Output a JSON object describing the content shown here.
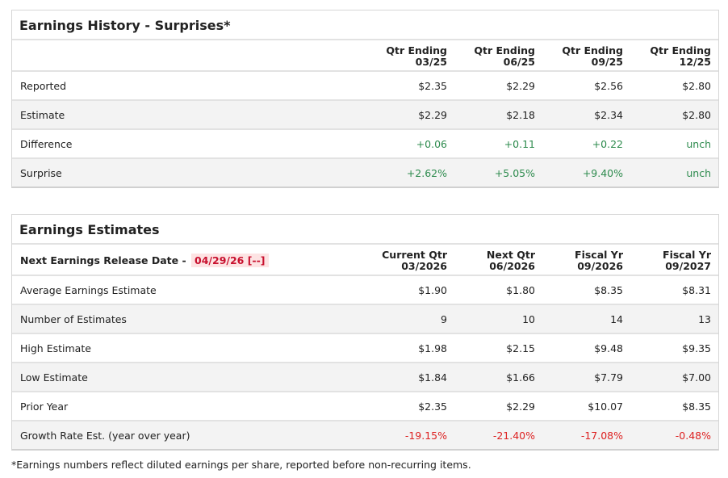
{
  "history": {
    "title": "Earnings History - Surprises*",
    "headers": [
      [
        "Qtr Ending",
        "03/25"
      ],
      [
        "Qtr Ending",
        "06/25"
      ],
      [
        "Qtr Ending",
        "09/25"
      ],
      [
        "Qtr Ending",
        "12/25"
      ]
    ],
    "rows": [
      {
        "label": "Reported",
        "values": [
          "$2.35",
          "$2.29",
          "$2.56",
          "$2.80"
        ],
        "tone": ""
      },
      {
        "label": "Estimate",
        "values": [
          "$2.29",
          "$2.18",
          "$2.34",
          "$2.80"
        ],
        "tone": ""
      },
      {
        "label": "Difference",
        "values": [
          "+0.06",
          "+0.11",
          "+0.22",
          "unch"
        ],
        "tone": "pos"
      },
      {
        "label": "Surprise",
        "values": [
          "+2.62%",
          "+5.05%",
          "+9.40%",
          "unch"
        ],
        "tone": "pos"
      }
    ]
  },
  "estimates": {
    "title": "Earnings Estimates",
    "release_label": "Next Earnings Release Date - ",
    "release_date": "04/29/26 [--]",
    "headers": [
      [
        "Current Qtr",
        "03/2026"
      ],
      [
        "Next Qtr",
        "06/2026"
      ],
      [
        "Fiscal Yr",
        "09/2026"
      ],
      [
        "Fiscal Yr",
        "09/2027"
      ]
    ],
    "rows": [
      {
        "label": "Average Earnings Estimate",
        "values": [
          "$1.90",
          "$1.80",
          "$8.35",
          "$8.31"
        ],
        "tone": ""
      },
      {
        "label": "Number of Estimates",
        "values": [
          "9",
          "10",
          "14",
          "13"
        ],
        "tone": ""
      },
      {
        "label": "High Estimate",
        "values": [
          "$1.98",
          "$2.15",
          "$9.48",
          "$9.35"
        ],
        "tone": ""
      },
      {
        "label": "Low Estimate",
        "values": [
          "$1.84",
          "$1.66",
          "$7.79",
          "$7.00"
        ],
        "tone": ""
      },
      {
        "label": "Prior Year",
        "values": [
          "$2.35",
          "$2.29",
          "$10.07",
          "$8.35"
        ],
        "tone": ""
      },
      {
        "label": "Growth Rate Est. (year over year)",
        "values": [
          "-19.15%",
          "-21.40%",
          "-17.08%",
          "-0.48%"
        ],
        "tone": "neg"
      }
    ]
  },
  "footnote": "*Earnings numbers reflect diluted earnings per share, reported before non-recurring items.",
  "colors": {
    "positive": "#2e8b4e",
    "negative": "#dd2222"
  }
}
